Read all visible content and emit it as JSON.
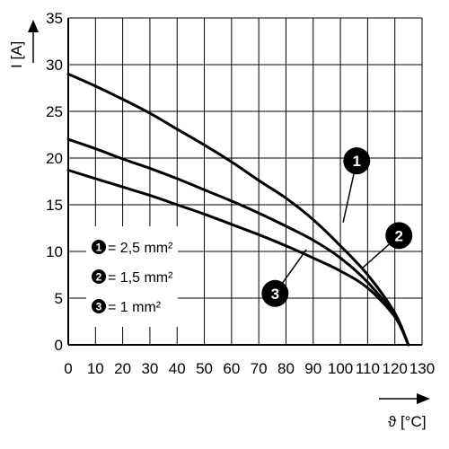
{
  "chart_data": {
    "type": "line",
    "xlabel": "ϑ [°C]",
    "ylabel": "I [A]",
    "xlim": [
      0,
      130
    ],
    "ylim": [
      0,
      35
    ],
    "xticks": [
      0,
      10,
      20,
      30,
      40,
      50,
      60,
      70,
      80,
      90,
      100,
      110,
      120,
      130
    ],
    "yticks": [
      0,
      5,
      10,
      15,
      20,
      25,
      30,
      35
    ],
    "grid": true,
    "legend_position": "bottom-left",
    "series": [
      {
        "marker": "1",
        "name": "= 2,5 mm²",
        "x": [
          0,
          10,
          20,
          30,
          40,
          50,
          60,
          70,
          80,
          90,
          100,
          110,
          120,
          125
        ],
        "y": [
          29,
          27.7,
          26.3,
          24.8,
          23.1,
          21.4,
          19.6,
          17.6,
          15.7,
          13.4,
          10.6,
          7.5,
          3.4,
          0
        ]
      },
      {
        "marker": "2",
        "name": "= 1,5 mm²",
        "x": [
          0,
          10,
          20,
          30,
          40,
          50,
          60,
          70,
          80,
          90,
          100,
          110,
          120,
          125
        ],
        "y": [
          22,
          21,
          19.9,
          18.9,
          17.8,
          16.6,
          15.4,
          14.1,
          12.7,
          11.2,
          9.3,
          6.7,
          3.1,
          0
        ]
      },
      {
        "marker": "3",
        "name": "= 1 mm²",
        "x": [
          0,
          10,
          20,
          30,
          40,
          50,
          60,
          70,
          80,
          90,
          100,
          110,
          120,
          125
        ],
        "y": [
          18.7,
          17.8,
          16.9,
          16.0,
          15.0,
          14.0,
          12.9,
          11.8,
          10.6,
          9.3,
          7.9,
          6.1,
          3.0,
          0
        ]
      }
    ],
    "callouts": [
      {
        "marker": "1",
        "x": 106,
        "y": 19.7,
        "target_x": 101,
        "target_y": 13.1
      },
      {
        "marker": "2",
        "x": 121.5,
        "y": 11.7,
        "target_x": 108,
        "target_y": 8.2
      },
      {
        "marker": "3",
        "x": 76,
        "y": 5.5,
        "target_x": 87.5,
        "target_y": 10.2
      }
    ]
  }
}
